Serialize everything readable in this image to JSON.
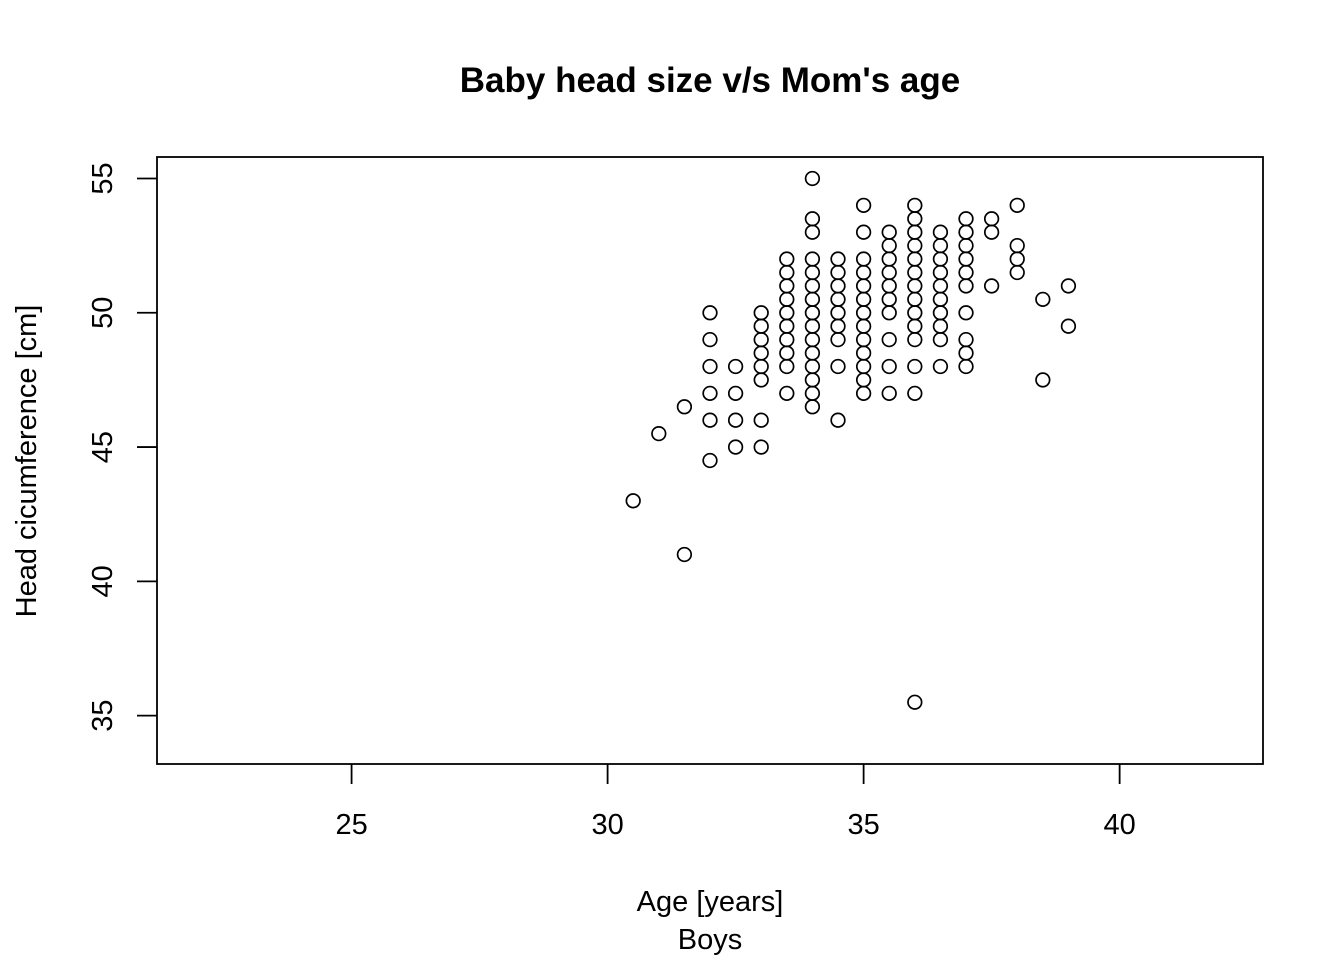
{
  "chart_data": {
    "type": "scatter",
    "title": "Baby head size v/s Mom's age",
    "xlabel": "Age [years]",
    "sub": "Boys",
    "ylabel": "Head cicumference [cm]",
    "xlim": [
      21.2,
      42.8
    ],
    "ylim": [
      33.2,
      55.8
    ],
    "xticks": [
      25,
      30,
      35,
      40
    ],
    "yticks": [
      35,
      40,
      45,
      50,
      55
    ],
    "point_color": "#000000",
    "grid": false,
    "legend": "none",
    "points": [
      [
        30.5,
        43
      ],
      [
        31,
        45.5
      ],
      [
        31.5,
        41
      ],
      [
        31.5,
        46.5
      ],
      [
        32,
        44.5
      ],
      [
        32,
        46
      ],
      [
        32,
        47
      ],
      [
        32,
        48
      ],
      [
        32,
        49
      ],
      [
        32,
        50
      ],
      [
        32.5,
        45
      ],
      [
        32.5,
        46
      ],
      [
        32.5,
        47
      ],
      [
        32.5,
        48
      ],
      [
        33,
        45
      ],
      [
        33,
        46
      ],
      [
        33,
        47.5
      ],
      [
        33,
        48
      ],
      [
        33,
        48.5
      ],
      [
        33,
        49
      ],
      [
        33,
        49.5
      ],
      [
        33,
        50
      ],
      [
        33.5,
        47
      ],
      [
        33.5,
        48
      ],
      [
        33.5,
        48.5
      ],
      [
        33.5,
        49
      ],
      [
        33.5,
        49.5
      ],
      [
        33.5,
        50
      ],
      [
        33.5,
        50.5
      ],
      [
        33.5,
        51
      ],
      [
        33.5,
        51.5
      ],
      [
        33.5,
        52
      ],
      [
        34,
        46.5
      ],
      [
        34,
        47
      ],
      [
        34,
        47.5
      ],
      [
        34,
        48
      ],
      [
        34,
        48.5
      ],
      [
        34,
        49
      ],
      [
        34,
        49.5
      ],
      [
        34,
        50
      ],
      [
        34,
        50.5
      ],
      [
        34,
        51
      ],
      [
        34,
        51.5
      ],
      [
        34,
        52
      ],
      [
        34,
        53
      ],
      [
        34,
        53.5
      ],
      [
        34,
        55
      ],
      [
        34.5,
        46
      ],
      [
        34.5,
        48
      ],
      [
        34.5,
        49
      ],
      [
        34.5,
        49.5
      ],
      [
        34.5,
        50
      ],
      [
        34.5,
        50.5
      ],
      [
        34.5,
        51
      ],
      [
        34.5,
        51.5
      ],
      [
        34.5,
        52
      ],
      [
        35,
        47
      ],
      [
        35,
        47.5
      ],
      [
        35,
        48
      ],
      [
        35,
        48.5
      ],
      [
        35,
        49
      ],
      [
        35,
        49.5
      ],
      [
        35,
        50
      ],
      [
        35,
        50.5
      ],
      [
        35,
        51
      ],
      [
        35,
        51.5
      ],
      [
        35,
        52
      ],
      [
        35,
        53
      ],
      [
        35,
        54
      ],
      [
        35.5,
        47
      ],
      [
        35.5,
        48
      ],
      [
        35.5,
        49
      ],
      [
        35.5,
        50
      ],
      [
        35.5,
        50.5
      ],
      [
        35.5,
        51
      ],
      [
        35.5,
        51.5
      ],
      [
        35.5,
        52
      ],
      [
        35.5,
        52.5
      ],
      [
        35.5,
        53
      ],
      [
        36,
        35.5
      ],
      [
        36,
        47
      ],
      [
        36,
        48
      ],
      [
        36,
        49
      ],
      [
        36,
        49.5
      ],
      [
        36,
        50
      ],
      [
        36,
        50.5
      ],
      [
        36,
        51
      ],
      [
        36,
        51.5
      ],
      [
        36,
        52
      ],
      [
        36,
        52.5
      ],
      [
        36,
        53
      ],
      [
        36,
        53.5
      ],
      [
        36,
        54
      ],
      [
        36.5,
        48
      ],
      [
        36.5,
        49
      ],
      [
        36.5,
        49.5
      ],
      [
        36.5,
        50
      ],
      [
        36.5,
        50.5
      ],
      [
        36.5,
        51
      ],
      [
        36.5,
        51.5
      ],
      [
        36.5,
        52
      ],
      [
        36.5,
        52.5
      ],
      [
        36.5,
        53
      ],
      [
        37,
        48
      ],
      [
        37,
        48.5
      ],
      [
        37,
        49
      ],
      [
        37,
        50
      ],
      [
        37,
        51
      ],
      [
        37,
        51.5
      ],
      [
        37,
        52
      ],
      [
        37,
        52.5
      ],
      [
        37,
        53
      ],
      [
        37,
        53.5
      ],
      [
        37.5,
        51
      ],
      [
        37.5,
        53
      ],
      [
        37.5,
        53.5
      ],
      [
        38,
        51.5
      ],
      [
        38,
        52
      ],
      [
        38,
        52.5
      ],
      [
        38,
        54
      ],
      [
        38.5,
        47.5
      ],
      [
        38.5,
        50.5
      ],
      [
        39,
        49.5
      ],
      [
        39,
        51
      ]
    ]
  }
}
